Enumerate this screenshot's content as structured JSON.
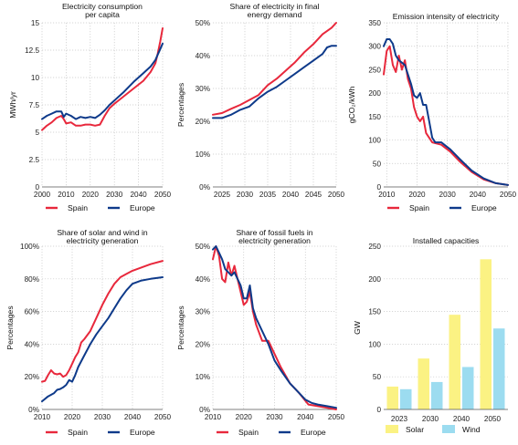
{
  "colors": {
    "spain": "#e8283c",
    "europe": "#0e3a8a",
    "solar": "#fbf283",
    "wind": "#9cdcf0"
  },
  "chart_data": [
    {
      "id": "c1",
      "type": "line",
      "title": [
        "Electricity consumption",
        "per capita"
      ],
      "ylabel": "MWh/yr",
      "xlim": [
        2000,
        2050
      ],
      "ylim": [
        0,
        15
      ],
      "xticks": [
        2000,
        2010,
        2020,
        2030,
        2040,
        2050
      ],
      "yticks": [
        0,
        2.5,
        5,
        7.5,
        10,
        12.5,
        15
      ],
      "ytick_labels": [
        "0",
        "2.5",
        "5",
        "7.5",
        "10",
        "12.5",
        "15"
      ],
      "legend": [
        "Spain",
        "Europe"
      ],
      "series": [
        {
          "name": "Spain",
          "color": "spain",
          "x": [
            2000,
            2002,
            2004,
            2006,
            2008,
            2009,
            2010,
            2012,
            2014,
            2016,
            2018,
            2020,
            2022,
            2024,
            2026,
            2028,
            2030,
            2034,
            2038,
            2042,
            2045,
            2047,
            2048,
            2049,
            2050
          ],
          "y": [
            5.2,
            5.6,
            5.9,
            6.3,
            6.5,
            6.2,
            5.8,
            5.9,
            5.6,
            5.6,
            5.7,
            5.7,
            5.6,
            5.7,
            6.5,
            7.2,
            7.6,
            8.3,
            9.0,
            9.7,
            10.5,
            11.3,
            12.2,
            13.3,
            14.5
          ]
        },
        {
          "name": "Europe",
          "color": "europe",
          "x": [
            2000,
            2002,
            2004,
            2006,
            2008,
            2009,
            2010,
            2012,
            2014,
            2016,
            2018,
            2020,
            2022,
            2024,
            2026,
            2028,
            2030,
            2034,
            2038,
            2042,
            2045,
            2047,
            2048,
            2049,
            2050
          ],
          "y": [
            6.2,
            6.5,
            6.7,
            6.9,
            6.9,
            6.4,
            6.7,
            6.5,
            6.2,
            6.4,
            6.3,
            6.4,
            6.3,
            6.6,
            7.0,
            7.5,
            7.9,
            8.7,
            9.6,
            10.4,
            11.0,
            11.6,
            12.1,
            12.6,
            13.1
          ]
        }
      ]
    },
    {
      "id": "c2",
      "type": "line",
      "title": [
        "Share of electricity in final",
        "energy demand"
      ],
      "ylabel": "Percentages",
      "xlim": [
        2023,
        2050
      ],
      "ylim": [
        0,
        50
      ],
      "xticks": [
        2025,
        2030,
        2035,
        2040,
        2045,
        2050
      ],
      "yticks": [
        0,
        10,
        20,
        30,
        40,
        50
      ],
      "ytick_labels": [
        "0%",
        "10%",
        "20%",
        "30%",
        "40%",
        "50%"
      ],
      "legend": [],
      "series": [
        {
          "name": "Spain",
          "color": "spain",
          "x": [
            2023,
            2025,
            2027,
            2029,
            2031,
            2033,
            2035,
            2037,
            2039,
            2041,
            2043,
            2045,
            2047,
            2049,
            2050
          ],
          "y": [
            22,
            22.5,
            23.8,
            25,
            26.5,
            28,
            31,
            33,
            35.5,
            38,
            41,
            43.5,
            46.5,
            48.5,
            50
          ]
        },
        {
          "name": "Europe",
          "color": "europe",
          "x": [
            2023,
            2025,
            2027,
            2029,
            2031,
            2033,
            2035,
            2037,
            2039,
            2041,
            2043,
            2045,
            2047,
            2048,
            2049,
            2050
          ],
          "y": [
            21,
            21,
            22,
            23.5,
            24.5,
            27,
            29,
            30.5,
            32.5,
            34.5,
            36.5,
            38.5,
            40.5,
            42.5,
            43,
            43
          ]
        }
      ]
    },
    {
      "id": "c3",
      "type": "line",
      "title": [
        "Emission intensity of electricity"
      ],
      "ylabel": "gCO₂/kWh",
      "xlim": [
        2009,
        2050
      ],
      "ylim": [
        0,
        350
      ],
      "xticks": [
        2010,
        2020,
        2030,
        2040,
        2050
      ],
      "yticks": [
        0,
        50,
        100,
        150,
        200,
        250,
        300,
        350
      ],
      "ytick_labels": [
        "0",
        "50",
        "100",
        "150",
        "200",
        "250",
        "300",
        "350"
      ],
      "legend": [
        "Spain",
        "Europe"
      ],
      "series": [
        {
          "name": "Spain",
          "color": "spain",
          "x": [
            2009,
            2010,
            2011,
            2012,
            2013,
            2014,
            2015,
            2016,
            2017,
            2018,
            2019,
            2020,
            2021,
            2022,
            2023,
            2025,
            2028,
            2031,
            2034,
            2038,
            2042,
            2046,
            2050
          ],
          "y": [
            240,
            290,
            300,
            260,
            245,
            280,
            250,
            270,
            230,
            210,
            170,
            150,
            140,
            150,
            115,
            95,
            90,
            75,
            55,
            32,
            16,
            8,
            4
          ]
        },
        {
          "name": "Europe",
          "color": "europe",
          "x": [
            2009,
            2010,
            2011,
            2012,
            2013,
            2014,
            2015,
            2016,
            2017,
            2018,
            2019,
            2020,
            2021,
            2022,
            2023,
            2024,
            2025,
            2026,
            2028,
            2031,
            2034,
            2038,
            2042,
            2046,
            2050
          ],
          "y": [
            300,
            315,
            315,
            305,
            280,
            270,
            265,
            260,
            240,
            220,
            195,
            190,
            200,
            175,
            175,
            140,
            105,
            95,
            95,
            80,
            60,
            35,
            18,
            8,
            4
          ]
        }
      ]
    },
    {
      "id": "c4",
      "type": "line",
      "title": [
        "Share of solar and wind in",
        "electricity generation"
      ],
      "ylabel": "Percentages",
      "xlim": [
        2010,
        2050
      ],
      "ylim": [
        0,
        100
      ],
      "xticks": [
        2010,
        2020,
        2030,
        2040,
        2050
      ],
      "yticks": [
        0,
        20,
        40,
        60,
        80,
        100
      ],
      "ytick_labels": [
        "0%",
        "20%",
        "40%",
        "60%",
        "80%",
        "100%"
      ],
      "legend": [
        "Spain",
        "Europe"
      ],
      "series": [
        {
          "name": "Spain",
          "color": "spain",
          "x": [
            2010,
            2011,
            2012,
            2013,
            2014,
            2015,
            2016,
            2017,
            2018,
            2019,
            2020,
            2021,
            2022,
            2023,
            2024,
            2026,
            2028,
            2030,
            2032,
            2034,
            2036,
            2038,
            2040,
            2043,
            2046,
            2050
          ],
          "y": [
            17,
            17.5,
            21,
            24,
            22,
            21.5,
            22,
            20,
            21,
            24,
            28,
            32,
            35,
            41,
            43,
            48,
            56,
            64,
            71,
            77,
            81,
            83,
            85,
            87,
            89,
            91
          ]
        },
        {
          "name": "Europe",
          "color": "europe",
          "x": [
            2010,
            2012,
            2014,
            2015,
            2016,
            2017,
            2018,
            2019,
            2020,
            2021,
            2022,
            2024,
            2026,
            2028,
            2030,
            2032,
            2034,
            2036,
            2038,
            2040,
            2043,
            2046,
            2050
          ],
          "y": [
            5,
            8,
            10,
            12,
            12.5,
            13.5,
            15,
            18,
            17,
            21,
            26,
            33,
            40,
            46,
            51,
            56,
            62,
            68,
            73,
            77,
            79,
            80,
            81
          ]
        }
      ]
    },
    {
      "id": "c5",
      "type": "line",
      "title": [
        "Share of fossil fuels in",
        "electricity generation"
      ],
      "ylabel": "Percentages",
      "xlim": [
        2010,
        2050
      ],
      "ylim": [
        0,
        50
      ],
      "xticks": [
        2010,
        2020,
        2030,
        2040,
        2050
      ],
      "yticks": [
        0,
        10,
        20,
        30,
        40,
        50
      ],
      "ytick_labels": [
        "0%",
        "10%",
        "20%",
        "30%",
        "40%",
        "50%"
      ],
      "legend": [
        "Spain",
        "Europe"
      ],
      "series": [
        {
          "name": "Spain",
          "color": "spain",
          "x": [
            2010,
            2011,
            2012,
            2013,
            2014,
            2015,
            2016,
            2017,
            2018,
            2019,
            2020,
            2021,
            2022,
            2023,
            2024,
            2026,
            2028,
            2030,
            2032,
            2035,
            2038,
            2041,
            2044,
            2047,
            2050
          ],
          "y": [
            46,
            50,
            47,
            40,
            39,
            45,
            41,
            44,
            40,
            36,
            32,
            33,
            36,
            30,
            26,
            21,
            21,
            17,
            13,
            8,
            5,
            1.5,
            1,
            0.5,
            0
          ]
        },
        {
          "name": "Europe",
          "color": "europe",
          "x": [
            2010,
            2011,
            2012,
            2013,
            2014,
            2015,
            2016,
            2017,
            2018,
            2019,
            2020,
            2021,
            2022,
            2023,
            2024,
            2026,
            2028,
            2030,
            2032,
            2035,
            2038,
            2040,
            2042,
            2044,
            2047,
            2050
          ],
          "y": [
            49,
            50,
            48,
            46,
            43,
            42,
            41,
            42,
            40,
            38,
            34,
            34,
            38,
            31,
            28,
            24,
            20,
            15,
            12,
            8,
            5,
            3,
            2,
            1.5,
            1,
            0.5
          ]
        }
      ]
    },
    {
      "id": "c6",
      "type": "bar",
      "title": [
        "Installed capacities"
      ],
      "ylabel": "GW",
      "ylim": [
        0,
        250
      ],
      "yticks": [
        0,
        50,
        100,
        150,
        200,
        250
      ],
      "ytick_labels": [
        "0",
        "50",
        "100",
        "150",
        "200",
        "250"
      ],
      "categories": [
        "2023",
        "2030",
        "2040",
        "2050"
      ],
      "legend": [
        "Solar",
        "Wind"
      ],
      "series": [
        {
          "name": "Solar",
          "color": "solar",
          "values": [
            35,
            78,
            145,
            230
          ]
        },
        {
          "name": "Wind",
          "color": "wind",
          "values": [
            31,
            42,
            65,
            124
          ]
        }
      ]
    }
  ]
}
